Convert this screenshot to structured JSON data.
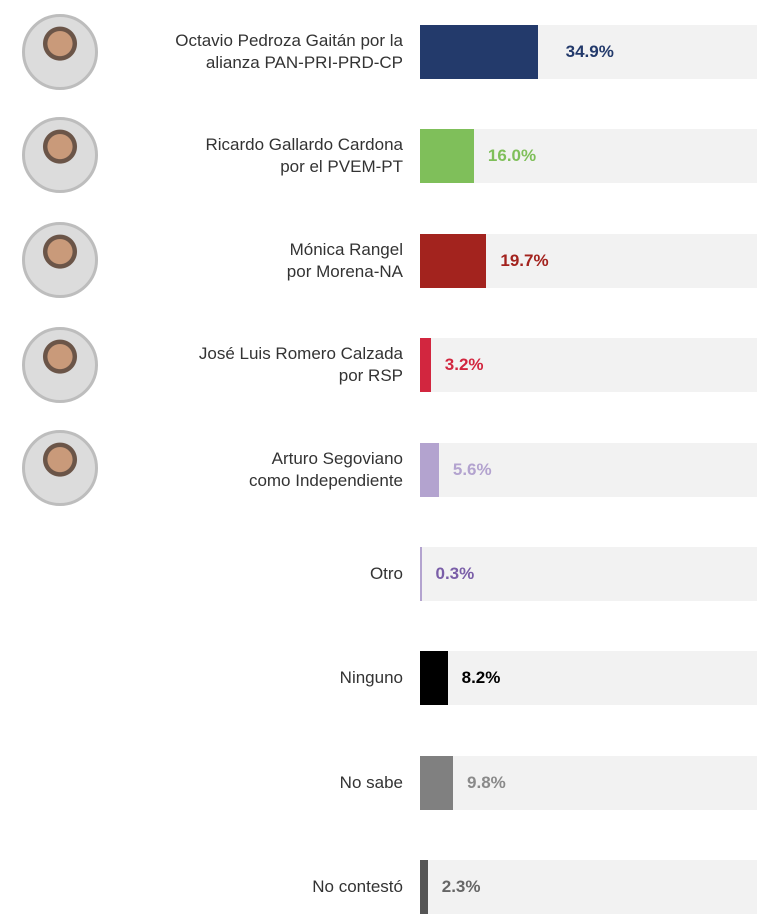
{
  "chart_data": {
    "type": "bar",
    "orientation": "horizontal",
    "categories": [
      "Octavio Pedroza Gaitán por la\nalianza PAN-PRI-PRD-CP",
      "Ricardo Gallardo Cardona\npor el PVEM-PT",
      "Mónica Rangel\npor Morena-NA",
      "José Luis Romero Calzada\npor RSP",
      "Arturo Segoviano\ncomo Independiente",
      "Otro",
      "Ninguno",
      "No sabe",
      "No contestó"
    ],
    "values": [
      34.9,
      16.0,
      19.7,
      3.2,
      5.6,
      0.3,
      8.2,
      9.8,
      2.3
    ],
    "value_labels": [
      "34.9%",
      "16.0%",
      "19.7%",
      "3.2%",
      "5.6%",
      "0.3%",
      "8.2%",
      "9.8%",
      "2.3%"
    ],
    "colors": [
      "#233a6b",
      "#7fbf5a",
      "#a3231e",
      "#d2263f",
      "#b3a3cf",
      "#b3a3cf",
      "#000000",
      "#808080",
      "#555555"
    ],
    "label_colors": [
      "#233a6b",
      "#7fbf5a",
      "#a3231e",
      "#d2263f",
      "#b3a3cf",
      "#7a5ea8",
      "#000000",
      "#8a8a8a",
      "#666666"
    ],
    "xlim": [
      0,
      100
    ]
  }
}
